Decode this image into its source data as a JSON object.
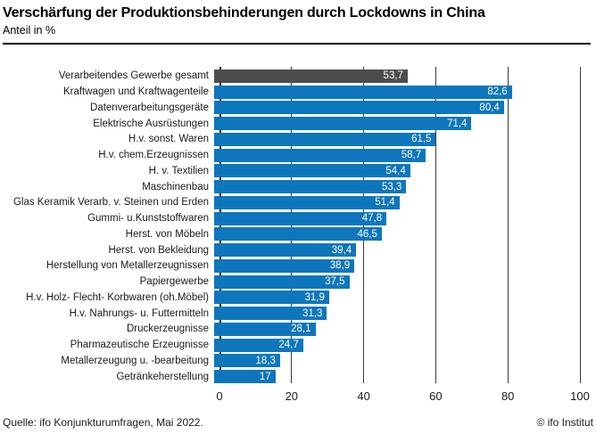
{
  "header": {
    "title": "Verschärfung der Produktionsbehinderungen durch Lockdowns in China",
    "subtitle": "Anteil in %"
  },
  "chart_data": {
    "type": "bar",
    "orientation": "horizontal",
    "title": "Verschärfung der Produktionsbehinderungen durch Lockdowns in China",
    "subtitle": "Anteil in %",
    "xlabel": "",
    "ylabel": "",
    "xlim": [
      0,
      100
    ],
    "xticks": [
      0,
      20,
      40,
      60,
      80,
      100
    ],
    "grid": "vertical",
    "legend": "none",
    "bar_color": "#0E76BC",
    "highlight_color": "#4D4D4D",
    "highlight_index": 0,
    "categories": [
      "Verarbeitendes Gewerbe gesamt",
      "Kraftwagen und Kraftwagenteile",
      "Datenverarbeitungsgeräte",
      "Elektrische Ausrüstungen",
      "H.v. sonst. Waren",
      "H.v. chem.Erzeugnissen",
      "H. v. Textilien",
      "Maschinenbau",
      "Glas Keramik Verarb. v. Steinen und Erden",
      "Gummi- u.Kunststoffwaren",
      "Herst. von Möbeln",
      "Herst. von Bekleidung",
      "Herstellung von Metallerzeugnissen",
      "Papiergewerbe",
      "H.v. Holz- Flecht- Korbwaren (oh.Möbel)",
      "H.v. Nahrungs- u. Futtermitteln",
      "Druckerzeugnisse",
      "Pharmazeutische Erzeugnisse",
      "Metallerzeugung u. -bearbeitung",
      "Getränkeherstellung"
    ],
    "values": [
      53.7,
      82.6,
      80.4,
      71.4,
      61.5,
      58.7,
      54.4,
      53.3,
      51.4,
      47.8,
      46.5,
      39.4,
      38.9,
      37.5,
      31.9,
      31.3,
      28.1,
      24.7,
      18.3,
      17
    ],
    "display_values": [
      "53,7",
      "82,6",
      "80,4",
      "71,4",
      "61,5",
      "58,7",
      "54,4",
      "53,3",
      "51,4",
      "47,8",
      "46,5",
      "39,4",
      "38,9",
      "37,5",
      "31,9",
      "31,3",
      "28,1",
      "24,7",
      "18,3",
      "17"
    ]
  },
  "footer": {
    "source": "Quelle: ifo Konjunkturumfragen, Mai 2022.",
    "copyright": "© ifo Institut"
  }
}
